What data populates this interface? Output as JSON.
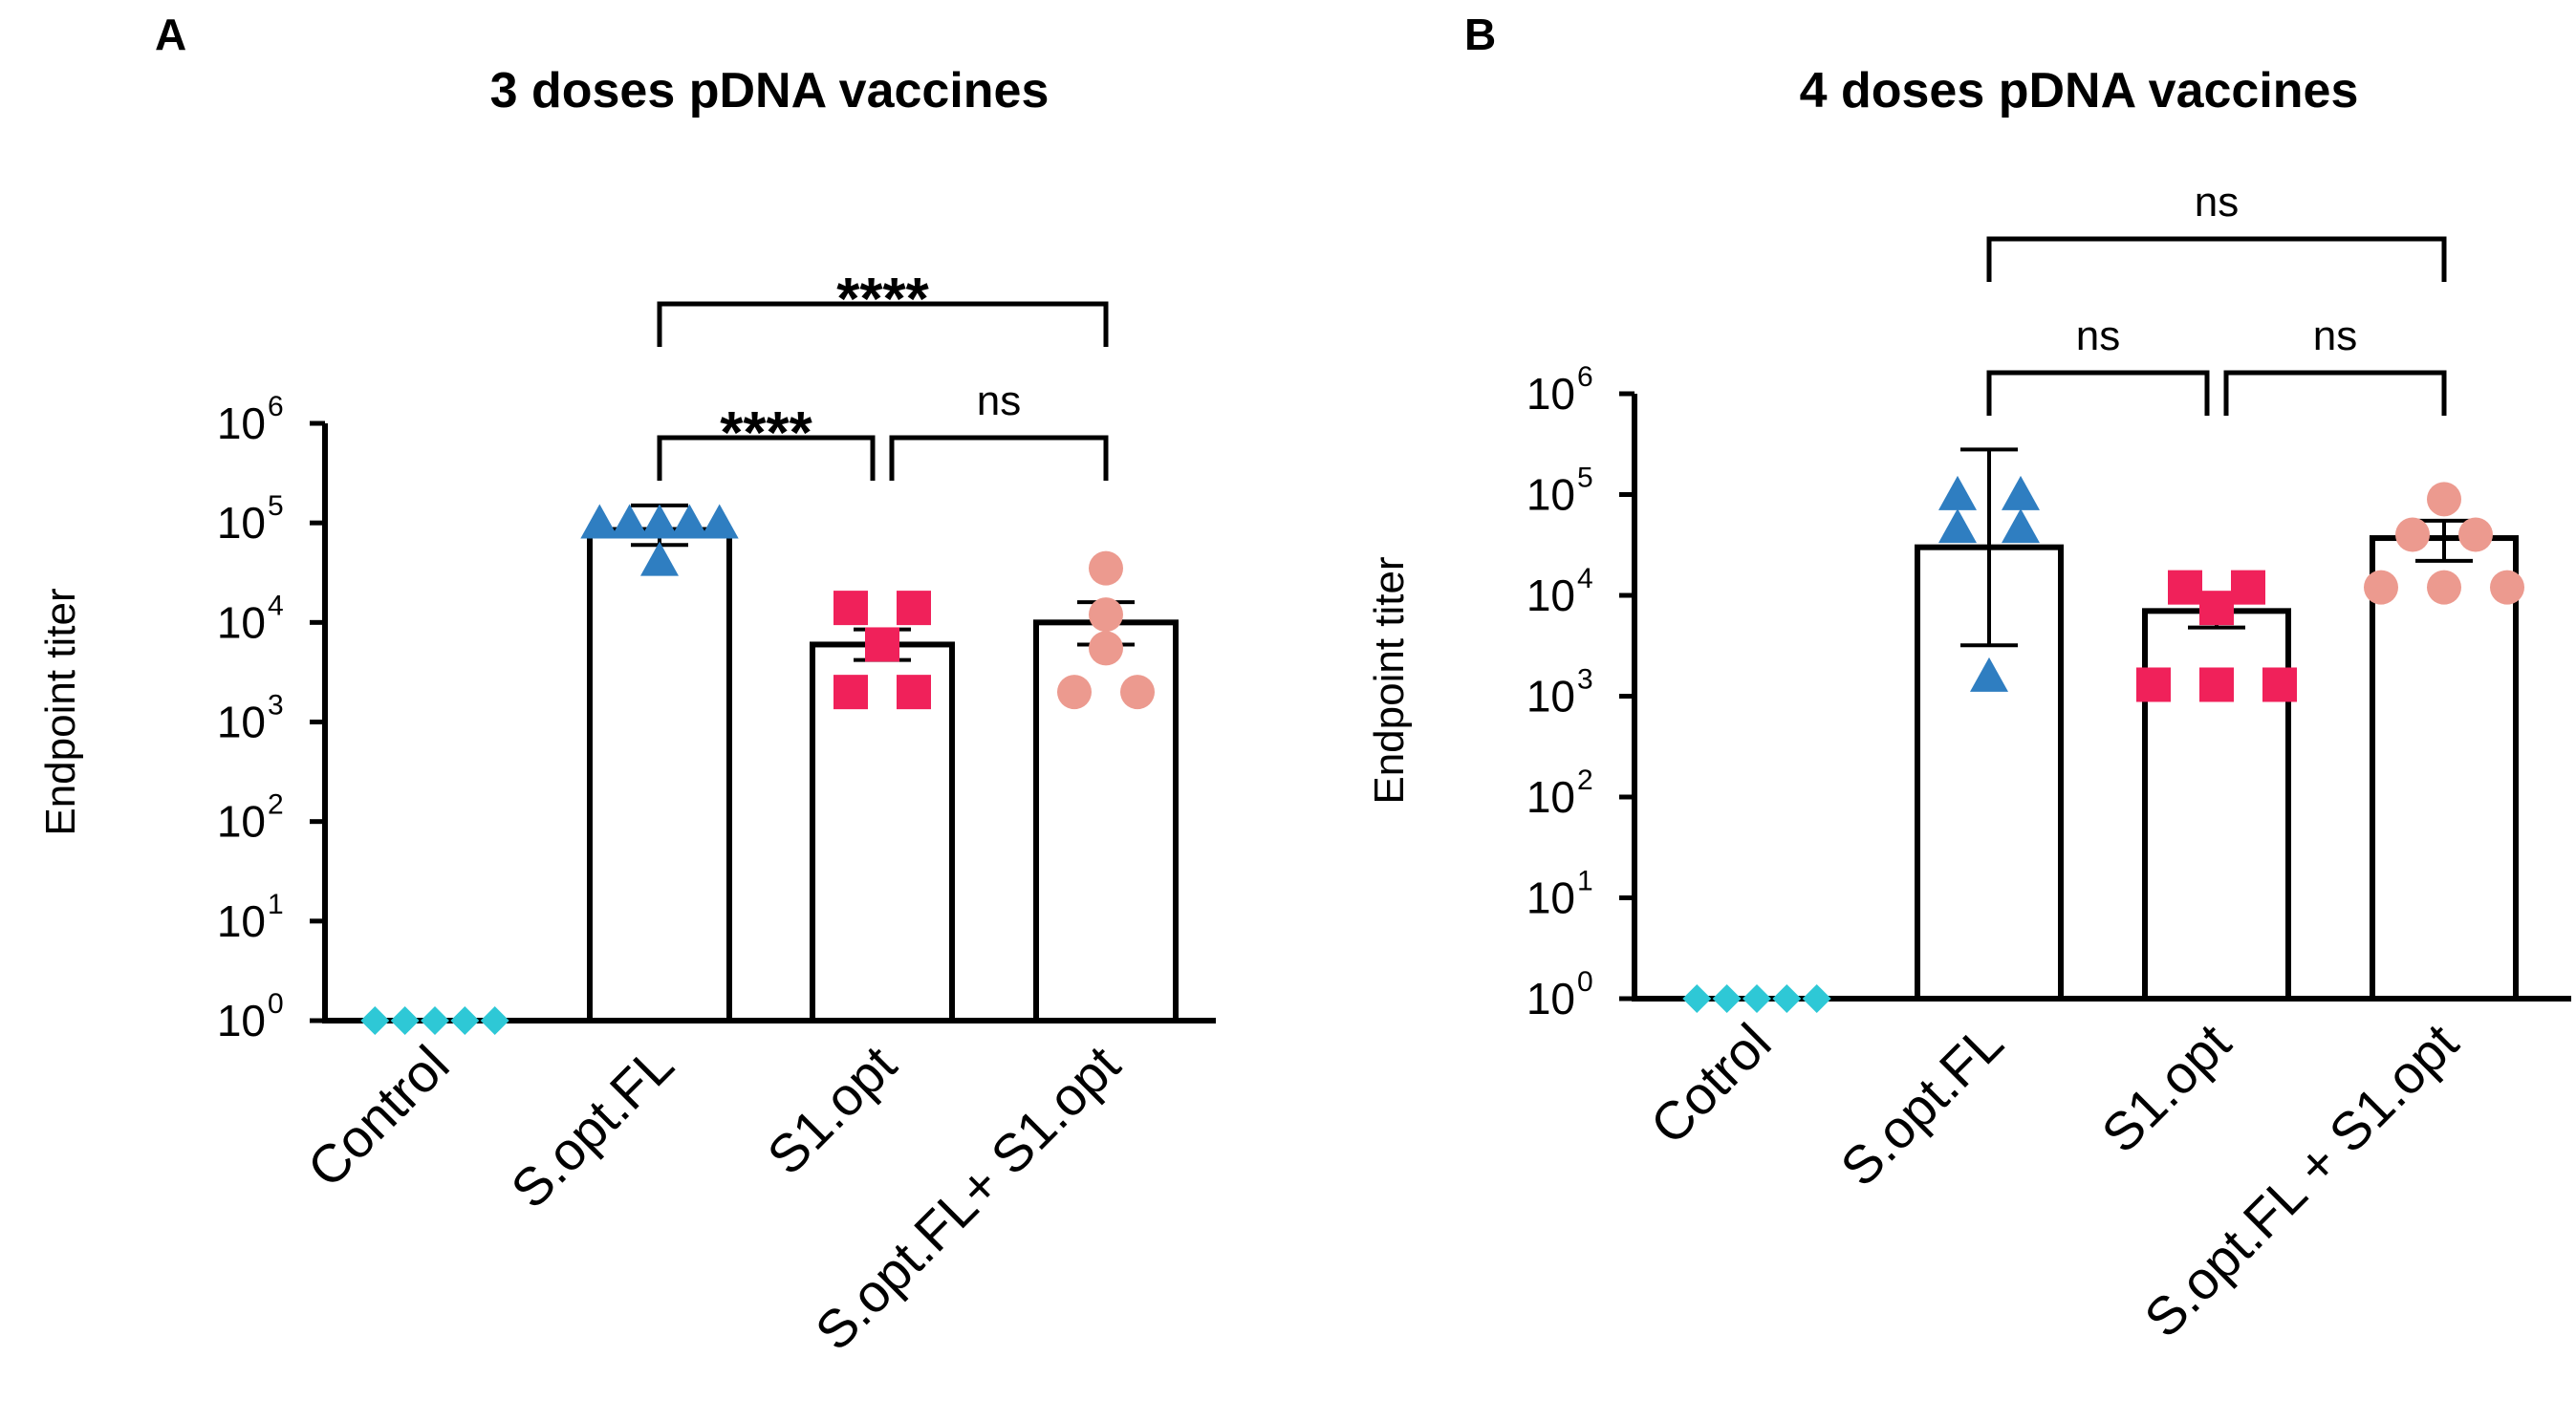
{
  "chart_data": [
    {
      "panel": "A",
      "type": "bar",
      "title": "3 doses pDNA vaccines",
      "xlabel": "",
      "ylabel": "Endpoint titer",
      "yscale": "log10",
      "ylim": [
        1,
        1000000
      ],
      "yticks": [
        {
          "base": "10",
          "exp": "0"
        },
        {
          "base": "10",
          "exp": "1"
        },
        {
          "base": "10",
          "exp": "2"
        },
        {
          "base": "10",
          "exp": "3"
        },
        {
          "base": "10",
          "exp": "4"
        },
        {
          "base": "10",
          "exp": "5"
        },
        {
          "base": "10",
          "exp": "6"
        }
      ],
      "categories": [
        "Control",
        "S.opt.FL",
        "S1.opt",
        "S.opt.FL+ S1.opt"
      ],
      "groups": [
        {
          "name": "Control",
          "marker": "diamond",
          "color": "#2ec8d6",
          "bar": null,
          "sem_low": null,
          "sem_high": null,
          "points": [
            1,
            1,
            1,
            1,
            1
          ]
        },
        {
          "name": "S.opt.FL",
          "marker": "triangle",
          "color": "#2f7ec1",
          "bar": 85000,
          "sem_low": 60000,
          "sem_high": 150000,
          "points": [
            95000,
            95000,
            95000,
            95000,
            95000,
            40000
          ]
        },
        {
          "name": "S1.opt",
          "marker": "square",
          "color": "#f0215a",
          "bar": 6000,
          "sem_low": 4200,
          "sem_high": 8500,
          "points": [
            14000,
            14000,
            6000,
            2000,
            2000
          ]
        },
        {
          "name": "S.opt.FL+ S1.opt",
          "marker": "circle",
          "color": "#ec9a8f",
          "bar": 10000,
          "sem_low": 6000,
          "sem_high": 16000,
          "points": [
            35000,
            12000,
            5500,
            2000,
            2000
          ]
        }
      ],
      "significance": [
        {
          "from": "S.opt.FL",
          "to": "S1.opt",
          "label": "****",
          "level": 1
        },
        {
          "from": "S1.opt",
          "to": "S.opt.FL+ S1.opt",
          "label": "ns",
          "level": 1
        },
        {
          "from": "S.opt.FL",
          "to": "S.opt.FL+ S1.opt",
          "label": "****",
          "level": 2
        }
      ]
    },
    {
      "panel": "B",
      "type": "bar",
      "title": "4 doses pDNA vaccines",
      "xlabel": "",
      "ylabel": "Endpoint titer",
      "yscale": "log10",
      "ylim": [
        1,
        1000000
      ],
      "yticks": [
        {
          "base": "10",
          "exp": "0"
        },
        {
          "base": "10",
          "exp": "1"
        },
        {
          "base": "10",
          "exp": "2"
        },
        {
          "base": "10",
          "exp": "3"
        },
        {
          "base": "10",
          "exp": "4"
        },
        {
          "base": "10",
          "exp": "5"
        },
        {
          "base": "10",
          "exp": "6"
        }
      ],
      "categories": [
        "Cotrol",
        "S.opt.FL",
        "S1.opt",
        "S.opt.FL + S1.opt"
      ],
      "groups": [
        {
          "name": "Cotrol",
          "marker": "diamond",
          "color": "#2ec8d6",
          "bar": null,
          "sem_low": null,
          "sem_high": null,
          "points": [
            1,
            1,
            1,
            1,
            1
          ]
        },
        {
          "name": "S.opt.FL",
          "marker": "triangle",
          "color": "#2f7ec1",
          "bar": 30000,
          "sem_low": 3200,
          "sem_high": 280000,
          "points": [
            95000,
            95000,
            45000,
            45000,
            1500
          ]
        },
        {
          "name": "S1.opt",
          "marker": "square",
          "color": "#f0215a",
          "bar": 7000,
          "sem_low": 4800,
          "sem_high": 9500,
          "points": [
            12000,
            12000,
            7500,
            1300,
            1300,
            1300
          ]
        },
        {
          "name": "S.opt.FL + S1.opt",
          "marker": "circle",
          "color": "#ec9a8f",
          "bar": 37000,
          "sem_low": 22000,
          "sem_high": 55000,
          "points": [
            90000,
            40000,
            40000,
            12000,
            12000,
            12000
          ]
        }
      ],
      "significance": [
        {
          "from": "S.opt.FL",
          "to": "S1.opt",
          "label": "ns",
          "level": 1
        },
        {
          "from": "S1.opt",
          "to": "S.opt.FL + S1.opt",
          "label": "ns",
          "level": 1
        },
        {
          "from": "S.opt.FL",
          "to": "S.opt.FL + S1.opt",
          "label": "ns",
          "level": 2
        }
      ]
    }
  ]
}
